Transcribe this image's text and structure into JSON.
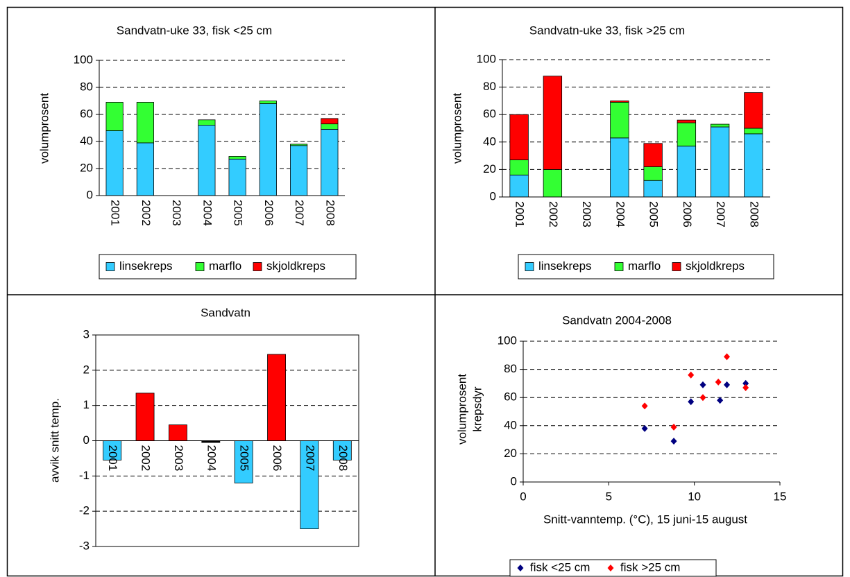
{
  "chart_data": [
    {
      "type": "stacked_bar",
      "title": "Sandvatn-uke 33, fisk <25 cm",
      "ylabel": "volumprosent",
      "categories": [
        "2001",
        "2002",
        "2003",
        "2004",
        "2005",
        "2006",
        "2007",
        "2008"
      ],
      "series": [
        {
          "name": "linsekreps",
          "color": "#33ccff",
          "values": [
            48,
            39,
            null,
            52,
            27,
            68,
            37,
            49
          ]
        },
        {
          "name": "marflo",
          "color": "#33ff33",
          "values": [
            21,
            30,
            null,
            4,
            2,
            2,
            1,
            4
          ]
        },
        {
          "name": "skjoldkreps",
          "color": "#ff0000",
          "values": [
            0,
            0,
            null,
            0,
            0,
            0,
            0,
            4
          ]
        }
      ],
      "ylim": [
        0,
        100
      ],
      "yticks": [
        0,
        20,
        40,
        60,
        80,
        100
      ],
      "grid": true
    },
    {
      "type": "stacked_bar",
      "title": "Sandvatn-uke 33, fisk >25 cm",
      "ylabel": "volumprosent",
      "categories": [
        "2001",
        "2002",
        "2003",
        "2004",
        "2005",
        "2006",
        "2007",
        "2008"
      ],
      "series": [
        {
          "name": "linsekreps",
          "color": "#33ccff",
          "values": [
            16,
            0,
            null,
            43,
            12,
            37,
            51,
            46
          ]
        },
        {
          "name": "marflo",
          "color": "#33ff33",
          "values": [
            11,
            20,
            null,
            26,
            10,
            17,
            2,
            4
          ]
        },
        {
          "name": "skjoldkreps",
          "color": "#ff0000",
          "values": [
            33,
            68,
            null,
            1,
            17,
            2,
            0,
            26
          ]
        }
      ],
      "ylim": [
        0,
        100
      ],
      "yticks": [
        0,
        20,
        40,
        60,
        80,
        100
      ],
      "grid": true
    },
    {
      "type": "bar",
      "title": "Sandvatn",
      "ylabel": "avvik snitt temp.",
      "categories": [
        "2001",
        "2002",
        "2003",
        "2004",
        "2005",
        "2006",
        "2007",
        "2008"
      ],
      "values": [
        -0.55,
        1.35,
        0.45,
        -0.05,
        -1.2,
        2.45,
        -2.5,
        -0.55
      ],
      "colors": [
        "#33ccff",
        "#ff0000",
        "#ff0000",
        "#000000",
        "#33ccff",
        "#ff0000",
        "#33ccff",
        "#33ccff"
      ],
      "ylim": [
        -3,
        3
      ],
      "yticks": [
        -3,
        -2,
        -1,
        0,
        1,
        2,
        3
      ],
      "grid": true
    },
    {
      "type": "scatter",
      "title": "Sandvatn 2004-2008",
      "ylabel": [
        "volumprosent",
        "krepsdyr"
      ],
      "xlabel": "Snitt-vanntemp. (°C), 15 juni-15 august",
      "series": [
        {
          "name": "fisk <25 cm",
          "color": "#000080",
          "x": [
            7.1,
            8.8,
            9.8,
            10.5,
            11.5,
            11.9,
            13
          ],
          "values": [
            38,
            29,
            57,
            69,
            58,
            69,
            70
          ]
        },
        {
          "name": "fisk >25 cm",
          "color": "#ff0000",
          "x": [
            7.1,
            8.8,
            9.8,
            10.5,
            11.4,
            11.9,
            13
          ],
          "values": [
            54,
            39,
            76,
            60,
            71,
            89,
            67
          ]
        }
      ],
      "xlim": [
        0,
        15
      ],
      "xticks": [
        0,
        5,
        10,
        15
      ],
      "ylim": [
        0,
        100
      ],
      "yticks": [
        0,
        20,
        40,
        60,
        80,
        100
      ],
      "grid": true
    }
  ]
}
